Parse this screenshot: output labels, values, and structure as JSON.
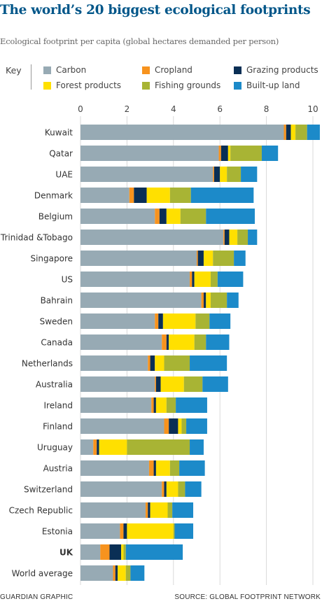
{
  "title": "The world’s 20 biggest ecological footprints",
  "subtitle": "Ecological footprint per capita (global hectares demanded per person)",
  "key_label": "Key",
  "footer": {
    "left": "GUARDIAN GRAPHIC",
    "right": "SOURCE: GLOBAL FOOTPRINT NETWORK"
  },
  "chart_data": {
    "type": "bar",
    "orientation": "horizontal",
    "stacked": true,
    "title": "The world’s 20 biggest ecological footprints",
    "subtitle": "Ecological footprint per capita (global hectares demanded per person)",
    "xlim": [
      0,
      10
    ],
    "x_ticks": [
      0,
      2,
      4,
      6,
      8,
      10
    ],
    "x_tick_labels": [
      "0",
      "2",
      "4",
      "6",
      "8",
      "10"
    ],
    "grid": true,
    "legend_position": "top",
    "bold_categories": [
      "UK"
    ],
    "categories": [
      "Kuwait",
      "Qatar",
      "UAE",
      "Denmark",
      "Belgium",
      "Trinidad &Tobago",
      "Singapore",
      "US",
      "Bahrain",
      "Sweden",
      "Canada",
      "Netherlands",
      "Australia",
      "Ireland",
      "Finland",
      "Uruguay",
      "Austria",
      "Switzerland",
      "Czech Republic",
      "Estonia",
      "UK",
      "World average"
    ],
    "series": [
      {
        "name": "Carbon",
        "color": "#97aab4",
        "values": [
          8.75,
          5.95,
          5.7,
          2.1,
          3.2,
          6.15,
          5.0,
          4.7,
          5.2,
          3.2,
          3.5,
          2.9,
          3.2,
          3.05,
          3.6,
          0.55,
          2.95,
          3.5,
          2.8,
          1.7,
          0.85,
          1.4
        ]
      },
      {
        "name": "Cropland",
        "color": "#f7931e",
        "values": [
          0.1,
          0.1,
          0.05,
          0.2,
          0.2,
          0.05,
          0.05,
          0.1,
          0.1,
          0.15,
          0.2,
          0.1,
          0.05,
          0.1,
          0.2,
          0.15,
          0.2,
          0.1,
          0.1,
          0.15,
          0.4,
          0.1
        ]
      },
      {
        "name": "Grazing products",
        "color": "#0a2f55",
        "values": [
          0.2,
          0.3,
          0.25,
          0.55,
          0.3,
          0.2,
          0.25,
          0.1,
          0.1,
          0.2,
          0.1,
          0.2,
          0.2,
          0.1,
          0.4,
          0.1,
          0.1,
          0.1,
          0.1,
          0.15,
          0.5,
          0.1
        ]
      },
      {
        "name": "Forest products",
        "color": "#ffe000",
        "values": [
          0.2,
          0.1,
          0.3,
          1.0,
          0.6,
          0.35,
          0.4,
          0.7,
          0.2,
          1.4,
          1.1,
          0.4,
          1.0,
          0.45,
          0.15,
          1.2,
          0.6,
          0.5,
          0.75,
          2.0,
          0.1,
          0.35
        ]
      },
      {
        "name": "Fishing grounds",
        "color": "#a8b434",
        "values": [
          0.5,
          1.35,
          0.6,
          0.9,
          1.1,
          0.45,
          0.9,
          0.3,
          0.7,
          0.6,
          0.5,
          1.1,
          0.8,
          0.4,
          0.2,
          2.7,
          0.4,
          0.3,
          0.2,
          0.05,
          0.1,
          0.2
        ]
      },
      {
        "name": "Built-up land",
        "color": "#1c8ac9",
        "values": [
          0.55,
          0.7,
          0.7,
          2.7,
          2.1,
          0.4,
          0.5,
          1.1,
          0.5,
          0.9,
          1.0,
          1.6,
          1.1,
          1.35,
          0.9,
          0.6,
          1.1,
          0.7,
          0.9,
          0.8,
          2.45,
          0.6
        ]
      }
    ]
  }
}
